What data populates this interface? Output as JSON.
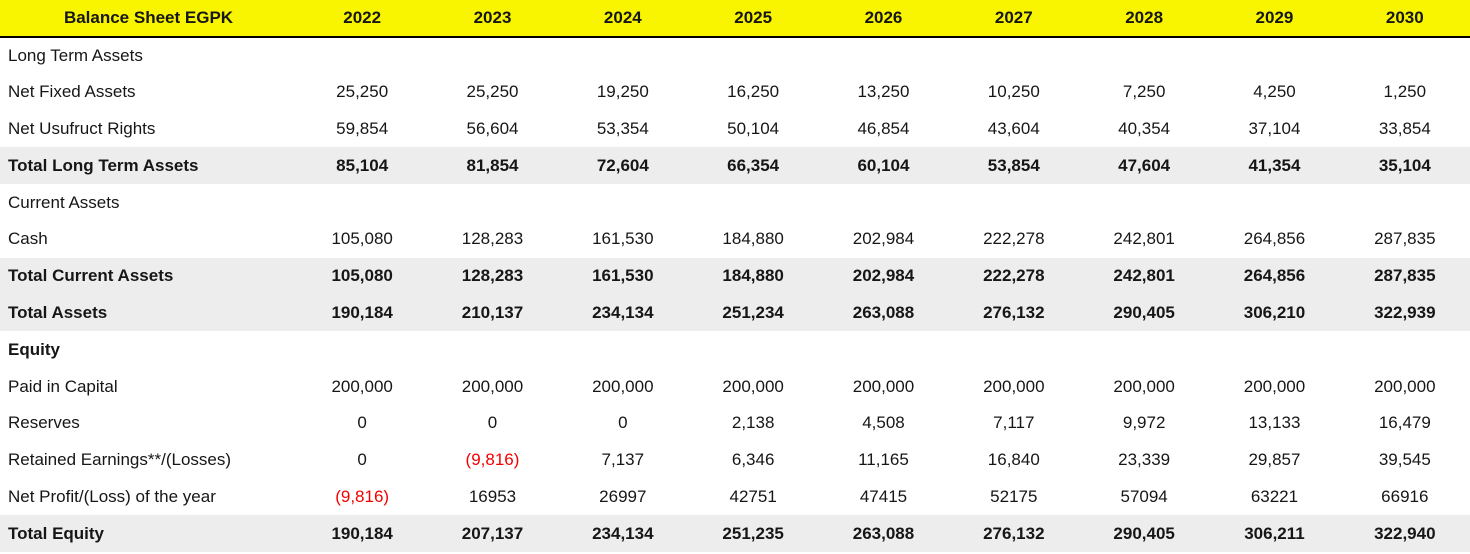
{
  "table": {
    "title": "Balance Sheet EGPK",
    "columns": [
      "2022",
      "2023",
      "2024",
      "2025",
      "2026",
      "2027",
      "2028",
      "2029",
      "2030"
    ],
    "rows": [
      {
        "label": "Long Term Assets",
        "style": "section",
        "values": [
          "",
          "",
          "",
          "",
          "",
          "",
          "",
          "",
          ""
        ]
      },
      {
        "label": "Net Fixed Assets",
        "style": "normal",
        "values": [
          "25,250",
          "25,250",
          "19,250",
          "16,250",
          "13,250",
          "10,250",
          "7,250",
          "4,250",
          "1,250"
        ]
      },
      {
        "label": "Net Usufruct Rights",
        "style": "normal",
        "values": [
          "59,854",
          "56,604",
          "53,354",
          "50,104",
          "46,854",
          "43,604",
          "40,354",
          "37,104",
          "33,854"
        ]
      },
      {
        "label": "Total Long Term Assets",
        "style": "total",
        "values": [
          "85,104",
          "81,854",
          "72,604",
          "66,354",
          "60,104",
          "53,854",
          "47,604",
          "41,354",
          "35,104"
        ]
      },
      {
        "label": "Current Assets",
        "style": "section",
        "values": [
          "",
          "",
          "",
          "",
          "",
          "",
          "",
          "",
          ""
        ]
      },
      {
        "label": "Cash",
        "style": "normal",
        "values": [
          "105,080",
          "128,283",
          "161,530",
          "184,880",
          "202,984",
          "222,278",
          "242,801",
          "264,856",
          "287,835"
        ]
      },
      {
        "label": "Total Current Assets",
        "style": "total",
        "values": [
          "105,080",
          "128,283",
          "161,530",
          "184,880",
          "202,984",
          "222,278",
          "242,801",
          "264,856",
          "287,835"
        ]
      },
      {
        "label": "Total Assets",
        "style": "total",
        "values": [
          "190,184",
          "210,137",
          "234,134",
          "251,234",
          "263,088",
          "276,132",
          "290,405",
          "306,210",
          "322,939"
        ]
      },
      {
        "label": "Equity",
        "style": "section-bold",
        "values": [
          "",
          "",
          "",
          "",
          "",
          "",
          "",
          "",
          ""
        ]
      },
      {
        "label": "Paid in Capital",
        "style": "normal",
        "values": [
          "200,000",
          "200,000",
          "200,000",
          "200,000",
          "200,000",
          "200,000",
          "200,000",
          "200,000",
          "200,000"
        ]
      },
      {
        "label": "Reserves",
        "style": "normal",
        "values": [
          "0",
          "0",
          "0",
          "2,138",
          "4,508",
          "7,117",
          "9,972",
          "13,133",
          "16,479"
        ]
      },
      {
        "label": "Retained Earnings**/(Losses)",
        "style": "normal",
        "values": [
          "0",
          "(9,816)",
          "7,137",
          "6,346",
          "11,165",
          "16,840",
          "23,339",
          "29,857",
          "39,545"
        ]
      },
      {
        "label": "Net Profit/(Loss) of the year",
        "style": "normal",
        "values": [
          "(9,816)",
          "16953",
          "26997",
          "42751",
          "47415",
          "52175",
          "57094",
          "63221",
          "66916"
        ]
      },
      {
        "label": "Total Equity",
        "style": "total",
        "values": [
          "190,184",
          "207,137",
          "234,134",
          "251,235",
          "263,088",
          "276,132",
          "290,405",
          "306,211",
          "322,940"
        ]
      }
    ],
    "colors": {
      "header_bg": "#F9F500",
      "total_row_bg": "#EDEDED",
      "negative_text": "#F40000",
      "text": "#161616",
      "header_border": "#000000"
    }
  }
}
